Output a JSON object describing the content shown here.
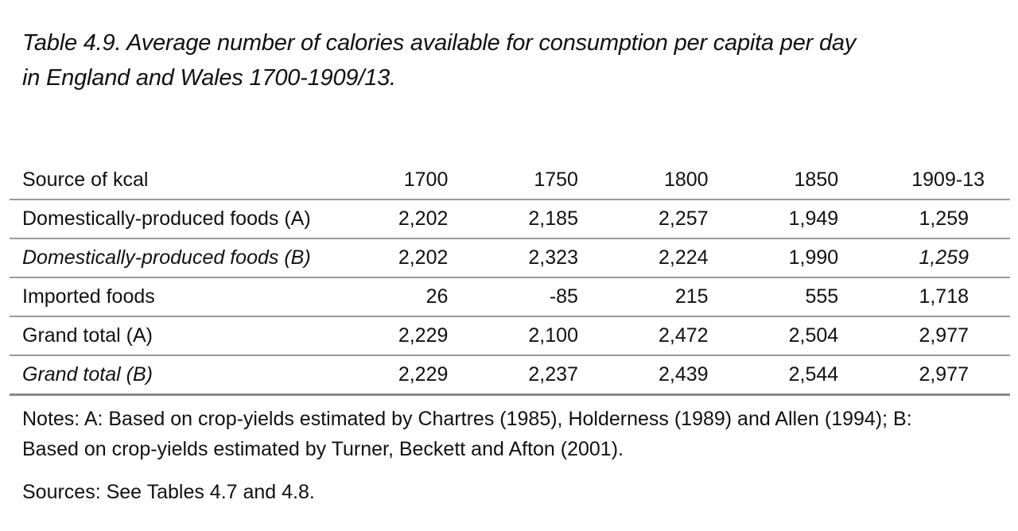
{
  "title": {
    "line1": "Table 4.9.  Average number of calories available for consumption per capita per day",
    "line2": "in England and Wales 1700-1909/13."
  },
  "table": {
    "headers": [
      "Source of kcal",
      "1700",
      "1750",
      "1800",
      "1850",
      "1909-13"
    ],
    "rows": [
      {
        "label": "Domestically-produced foods (A)",
        "values": [
          "2,202",
          "2,185",
          "2,257",
          "1,949",
          "1,259"
        ]
      },
      {
        "label": "Domestically-produced foods (B)",
        "values": [
          "2,202",
          "2,323",
          "2,224",
          "1,990",
          "1,259"
        ]
      },
      {
        "label": "Imported foods",
        "values": [
          "26",
          "-85",
          "215",
          "555",
          "1,718"
        ]
      },
      {
        "label": "Grand total (A)",
        "values": [
          "2,229",
          "2,100",
          "2,472",
          "2,504",
          "2,977"
        ]
      },
      {
        "label": "Grand total (B)",
        "values": [
          "2,229",
          "2,237",
          "2,439",
          "2,544",
          "2,977"
        ]
      }
    ]
  },
  "notes": {
    "line1": "Notes: A: Based on crop-yields estimated by Chartres (1985), Holderness (1989) and Allen (1994); B:",
    "line2": "Based on crop-yields estimated by Turner, Beckett and Afton (2001)."
  },
  "sources": "Sources: See Tables 4.7 and 4.8."
}
